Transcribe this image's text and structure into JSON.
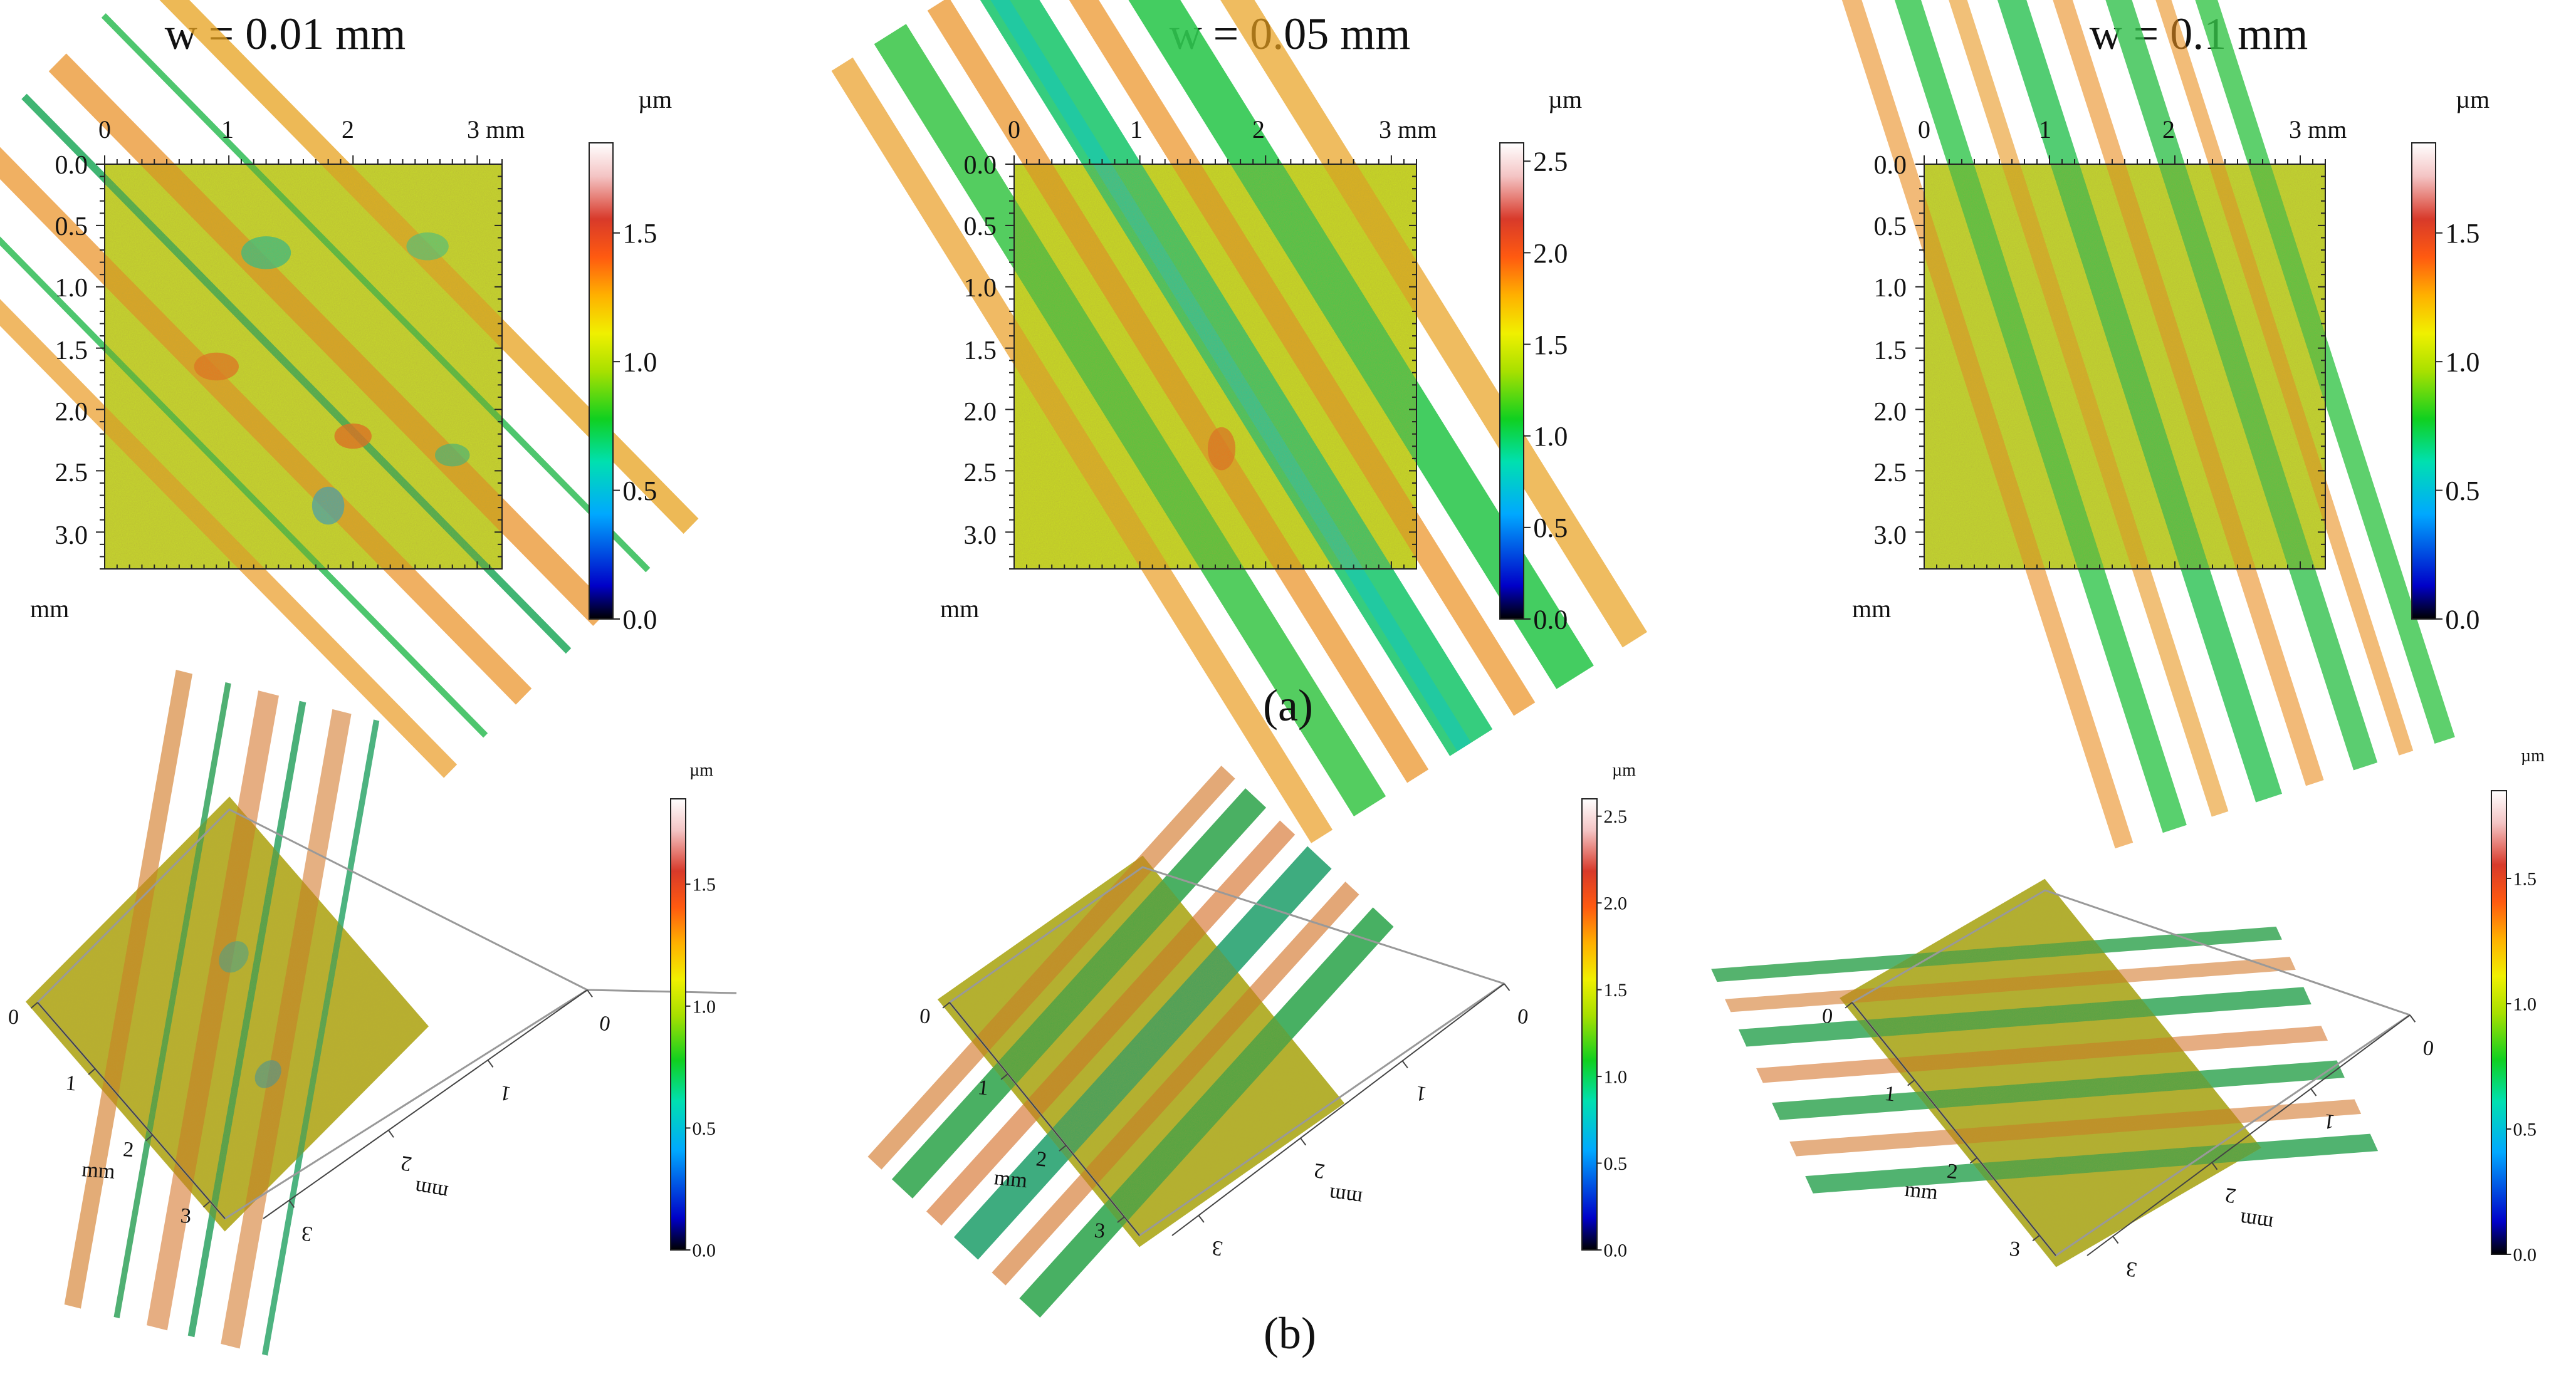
{
  "row_a": {
    "label": "(a)",
    "panels": [
      {
        "title": "w = 0.01 mm",
        "x_ticks": [
          "0",
          "1",
          "2",
          "3 mm"
        ],
        "y_ticks": [
          "0.0",
          "0.5",
          "1.0",
          "1.5",
          "2.0",
          "2.5",
          "3.0"
        ],
        "y_unit": "mm",
        "colorbar": {
          "unit": "µm",
          "ticks": [
            "1.5",
            "1.0",
            "0.5",
            "0.0"
          ],
          "tick_values": [
            1.5,
            1.0,
            0.5,
            0.0
          ],
          "max": 1.85
        }
      },
      {
        "title": "w = 0.05 mm",
        "x_ticks": [
          "0",
          "1",
          "2",
          "3 mm"
        ],
        "y_ticks": [
          "0.0",
          "0.5",
          "1.0",
          "1.5",
          "2.0",
          "2.5",
          "3.0"
        ],
        "y_unit": "mm",
        "colorbar": {
          "unit": "µm",
          "ticks": [
            "2.5",
            "2.0",
            "1.5",
            "1.0",
            "0.5",
            "0.0"
          ],
          "tick_values": [
            2.5,
            2.0,
            1.5,
            1.0,
            0.5,
            0.0
          ],
          "max": 2.6
        }
      },
      {
        "title": "w = 0.1 mm",
        "x_ticks": [
          "0",
          "1",
          "2",
          "3 mm"
        ],
        "y_ticks": [
          "0.0",
          "0.5",
          "1.0",
          "1.5",
          "2.0",
          "2.5",
          "3.0"
        ],
        "y_unit": "mm",
        "colorbar": {
          "unit": "µm",
          "ticks": [
            "1.5",
            "1.0",
            "0.5",
            "0.0"
          ],
          "tick_values": [
            1.5,
            1.0,
            0.5,
            0.0
          ],
          "max": 1.85
        }
      }
    ]
  },
  "row_b": {
    "label": "(b)",
    "panels": [
      {
        "left_axis": {
          "ticks": [
            "0",
            "1",
            "2",
            "3"
          ],
          "unit": "mm"
        },
        "right_axis": {
          "ticks": [
            "0",
            "1",
            "2",
            "3"
          ],
          "unit": "mm"
        },
        "colorbar": {
          "unit": "µm",
          "ticks": [
            "1.5",
            "1.0",
            "0.5",
            "0.0"
          ],
          "tick_values": [
            1.5,
            1.0,
            0.5,
            0.0
          ],
          "max": 1.85
        }
      },
      {
        "left_axis": {
          "ticks": [
            "0",
            "1",
            "2",
            "3"
          ],
          "unit": "mm"
        },
        "right_axis": {
          "ticks": [
            "0",
            "1",
            "2",
            "3"
          ],
          "unit": "mm"
        },
        "colorbar": {
          "unit": "µm",
          "ticks": [
            "2.5",
            "2.0",
            "1.5",
            "1.0",
            "0.5",
            "0.0"
          ],
          "tick_values": [
            2.5,
            2.0,
            1.5,
            1.0,
            0.5,
            0.0
          ],
          "max": 2.6
        }
      },
      {
        "left_axis": {
          "ticks": [
            "0",
            "1",
            "2",
            "3"
          ],
          "unit": "mm"
        },
        "right_axis": {
          "ticks": [
            "0",
            "1",
            "2",
            "3"
          ],
          "unit": "mm"
        },
        "colorbar": {
          "unit": "µm",
          "ticks": [
            "1.5",
            "1.0",
            "0.5",
            "0.0"
          ],
          "tick_values": [
            1.5,
            1.0,
            0.5,
            0.0
          ],
          "max": 1.85
        }
      }
    ]
  },
  "colors": {
    "jet_stops": [
      "#000000",
      "#0000c8",
      "#00b0ff",
      "#00e6a0",
      "#18d018",
      "#a8e000",
      "#f0f000",
      "#ffb000",
      "#ff5a10",
      "#d83a2a",
      "#f6c8c8",
      "#ffffff"
    ]
  }
}
